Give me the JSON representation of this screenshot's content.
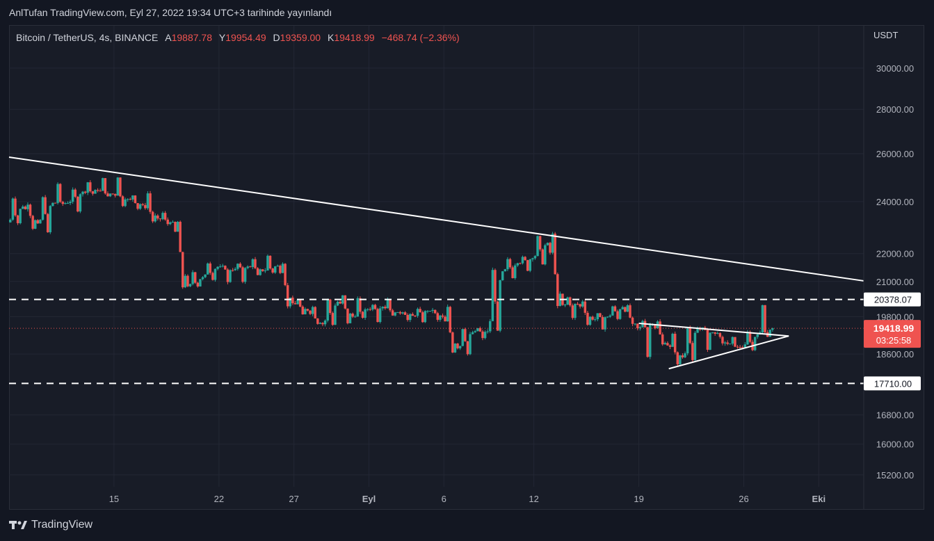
{
  "caption": "AnlTufan TradingView.com, Eyl 27, 2022 19:34 UTC+3 tarihinde yayınlandı",
  "legend": {
    "symbol": "Bitcoin / TetherUS, 4s, BINANCE",
    "open_label": "A",
    "open": "19887.78",
    "high_label": "Y",
    "high": "19954.49",
    "low_label": "D",
    "low": "19359.00",
    "close_label": "K",
    "close": "19418.99",
    "change": "−468.74 (−2.36%)"
  },
  "currency": "USDT",
  "brand": {
    "name": "TradingView",
    "logo_icon": "tradingview-logo-icon"
  },
  "colors": {
    "up": "#26a69a",
    "down": "#ef5350",
    "background": "#131722",
    "line": "#ffffff"
  },
  "chart_data": {
    "type": "candlestick",
    "y_scale": "log",
    "ylim": [
      14900,
      32200
    ],
    "y_ticks": [
      "30000.00",
      "28000.00",
      "26000.00",
      "24000.00",
      "22000.00",
      "21000.00",
      "19800.00",
      "18600.00",
      "16800.00",
      "16000.00",
      "15200.00"
    ],
    "x_ticks": [
      "15",
      "22",
      "27",
      "Eyl",
      "6",
      "12",
      "19",
      "26",
      "Eki"
    ],
    "x_range": [
      "2022-08-08",
      "2022-10-04"
    ],
    "price_labels": [
      {
        "value": "20378.07",
        "style": "horizontal-dashed-level"
      },
      {
        "value": "17710.00",
        "style": "horizontal-dashed-level"
      }
    ],
    "last_price": {
      "value": "19418.99",
      "countdown": "03:25:58"
    },
    "series_days": [
      {
        "date": "2022-08-08",
        "o": 23180,
        "h": 24230,
        "l": 23150,
        "c": 23800
      },
      {
        "date": "2022-08-09",
        "o": 23800,
        "h": 23950,
        "l": 22920,
        "c": 23140
      },
      {
        "date": "2022-08-10",
        "o": 23140,
        "h": 24200,
        "l": 22670,
        "c": 23950
      },
      {
        "date": "2022-08-11",
        "o": 23950,
        "h": 24920,
        "l": 23900,
        "c": 23940
      },
      {
        "date": "2022-08-12",
        "o": 23940,
        "h": 24450,
        "l": 23580,
        "c": 24400
      },
      {
        "date": "2022-08-13",
        "o": 24400,
        "h": 24880,
        "l": 24300,
        "c": 24440
      },
      {
        "date": "2022-08-14",
        "o": 24440,
        "h": 25050,
        "l": 24150,
        "c": 24300
      },
      {
        "date": "2022-08-15",
        "o": 24300,
        "h": 25200,
        "l": 23800,
        "c": 24100
      },
      {
        "date": "2022-08-16",
        "o": 24100,
        "h": 24300,
        "l": 23700,
        "c": 23860
      },
      {
        "date": "2022-08-17",
        "o": 23860,
        "h": 24450,
        "l": 23200,
        "c": 23330
      },
      {
        "date": "2022-08-18",
        "o": 23330,
        "h": 23600,
        "l": 23100,
        "c": 23200
      },
      {
        "date": "2022-08-19",
        "o": 23200,
        "h": 23200,
        "l": 20800,
        "c": 20830
      },
      {
        "date": "2022-08-20",
        "o": 20830,
        "h": 21380,
        "l": 20850,
        "c": 21150
      },
      {
        "date": "2022-08-21",
        "o": 21150,
        "h": 21700,
        "l": 21080,
        "c": 21520
      },
      {
        "date": "2022-08-22",
        "o": 21520,
        "h": 21520,
        "l": 20850,
        "c": 21400
      },
      {
        "date": "2022-08-23",
        "o": 21400,
        "h": 21650,
        "l": 20900,
        "c": 21530
      },
      {
        "date": "2022-08-24",
        "o": 21530,
        "h": 21900,
        "l": 21150,
        "c": 21370
      },
      {
        "date": "2022-08-25",
        "o": 21370,
        "h": 22000,
        "l": 21320,
        "c": 21560
      },
      {
        "date": "2022-08-26",
        "o": 21560,
        "h": 21700,
        "l": 20100,
        "c": 20250
      },
      {
        "date": "2022-08-27",
        "o": 20250,
        "h": 20400,
        "l": 19800,
        "c": 20000
      },
      {
        "date": "2022-08-28",
        "o": 20000,
        "h": 20150,
        "l": 19600,
        "c": 19550
      },
      {
        "date": "2022-08-29",
        "o": 19550,
        "h": 20380,
        "l": 19550,
        "c": 20300
      },
      {
        "date": "2022-08-30",
        "o": 20300,
        "h": 20550,
        "l": 19550,
        "c": 19800
      },
      {
        "date": "2022-08-31",
        "o": 19800,
        "h": 20490,
        "l": 19780,
        "c": 20050
      },
      {
        "date": "2022-09-01",
        "o": 20050,
        "h": 20200,
        "l": 19560,
        "c": 20130
      },
      {
        "date": "2022-09-02",
        "o": 20130,
        "h": 20450,
        "l": 19770,
        "c": 19950
      },
      {
        "date": "2022-09-03",
        "o": 19950,
        "h": 19980,
        "l": 19650,
        "c": 19830
      },
      {
        "date": "2022-09-04",
        "o": 19830,
        "h": 20050,
        "l": 19600,
        "c": 19990
      },
      {
        "date": "2022-09-05",
        "o": 19990,
        "h": 20050,
        "l": 19650,
        "c": 19800
      },
      {
        "date": "2022-09-06",
        "o": 19800,
        "h": 20180,
        "l": 18650,
        "c": 18780
      },
      {
        "date": "2022-09-07",
        "o": 18780,
        "h": 19450,
        "l": 18550,
        "c": 19290
      },
      {
        "date": "2022-09-08",
        "o": 19290,
        "h": 19450,
        "l": 19030,
        "c": 19320
      },
      {
        "date": "2022-09-09",
        "o": 19320,
        "h": 21400,
        "l": 19300,
        "c": 21360
      },
      {
        "date": "2022-09-10",
        "o": 21360,
        "h": 21800,
        "l": 21100,
        "c": 21650
      },
      {
        "date": "2022-09-11",
        "o": 21650,
        "h": 21850,
        "l": 21350,
        "c": 21830
      },
      {
        "date": "2022-09-12",
        "o": 21830,
        "h": 22680,
        "l": 21600,
        "c": 22400
      },
      {
        "date": "2022-09-13",
        "o": 22400,
        "h": 22800,
        "l": 20100,
        "c": 20190
      },
      {
        "date": "2022-09-14",
        "o": 20190,
        "h": 20500,
        "l": 19630,
        "c": 20220
      },
      {
        "date": "2022-09-15",
        "o": 20220,
        "h": 20350,
        "l": 19500,
        "c": 19700
      },
      {
        "date": "2022-09-16",
        "o": 19700,
        "h": 19900,
        "l": 19350,
        "c": 19800
      },
      {
        "date": "2022-09-17",
        "o": 19800,
        "h": 20150,
        "l": 19700,
        "c": 20120
      },
      {
        "date": "2022-09-18",
        "o": 20120,
        "h": 20150,
        "l": 19550,
        "c": 19420
      },
      {
        "date": "2022-09-19",
        "o": 19420,
        "h": 19700,
        "l": 18300,
        "c": 19550
      },
      {
        "date": "2022-09-20",
        "o": 19550,
        "h": 19650,
        "l": 18900,
        "c": 18870
      },
      {
        "date": "2022-09-21",
        "o": 18870,
        "h": 19300,
        "l": 18200,
        "c": 18500
      },
      {
        "date": "2022-09-22",
        "o": 18500,
        "h": 19500,
        "l": 18350,
        "c": 19400
      },
      {
        "date": "2022-09-23",
        "o": 19400,
        "h": 19500,
        "l": 18550,
        "c": 19290
      },
      {
        "date": "2022-09-24",
        "o": 19290,
        "h": 19300,
        "l": 18900,
        "c": 18920
      },
      {
        "date": "2022-09-25",
        "o": 18920,
        "h": 19150,
        "l": 18800,
        "c": 18800
      },
      {
        "date": "2022-09-26",
        "o": 18800,
        "h": 19300,
        "l": 18700,
        "c": 19220
      },
      {
        "date": "2022-09-27",
        "o": 19220,
        "h": 20380,
        "l": 19150,
        "c": 19419
      }
    ],
    "drawings": [
      {
        "type": "trendline",
        "points": [
          [
            "2022-08-08",
            25850
          ],
          [
            "2022-10-04",
            21020
          ]
        ]
      },
      {
        "type": "triangle-upper",
        "points": [
          [
            "2022-09-19",
            19580
          ],
          [
            "2022-09-29",
            19170
          ]
        ]
      },
      {
        "type": "triangle-lower",
        "points": [
          [
            "2022-09-21",
            18150
          ],
          [
            "2022-09-29",
            19170
          ]
        ]
      }
    ]
  }
}
